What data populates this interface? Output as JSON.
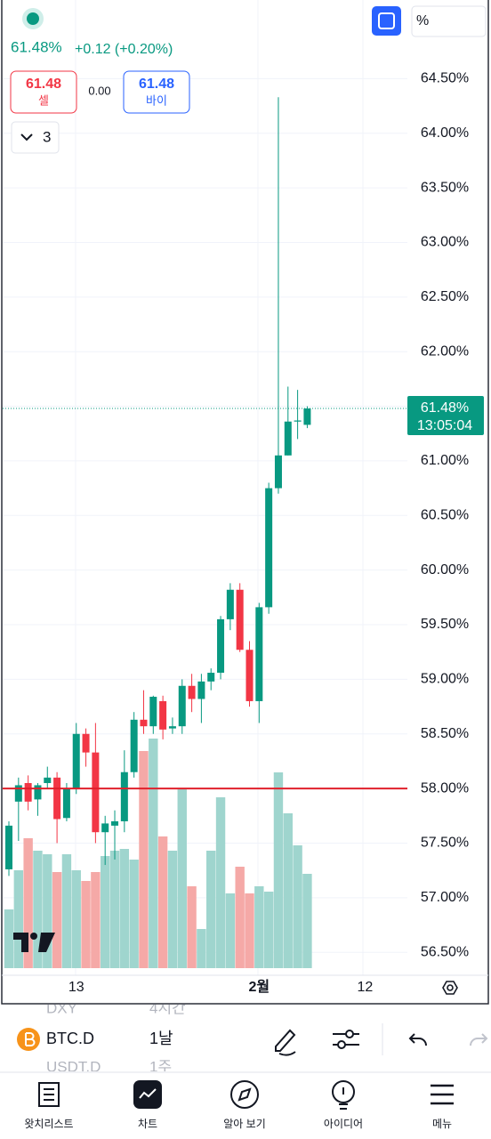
{
  "header": {
    "price": "61.48%",
    "change": "+0.12 (+0.20%)",
    "sell_price": "61.48",
    "sell_label": "셀",
    "spread": "0.00",
    "buy_price": "61.48",
    "buy_label": "바이",
    "indicators_count": "3",
    "scale_button": "%"
  },
  "chart_data": {
    "type": "candlestick",
    "categories": [
      null,
      null,
      null,
      null,
      null,
      null,
      null,
      "13",
      null,
      null,
      null,
      null,
      null,
      null,
      null,
      null,
      null,
      null,
      null,
      null,
      null,
      null,
      null,
      null,
      null,
      null,
      "2월",
      null,
      null,
      null,
      null,
      null,
      null,
      null,
      null,
      null,
      null,
      "12"
    ],
    "open": [
      57.26,
      57.88,
      58.05,
      57.9,
      58.05,
      58.1,
      57.73,
      58.0,
      58.5,
      58.33,
      57.6,
      57.66,
      57.7,
      58.15,
      58.63,
      58.57,
      58.8,
      58.55,
      58.57,
      58.94,
      58.82,
      58.98,
      59.06,
      59.55,
      59.82,
      59.27,
      58.8,
      59.66,
      60.75,
      61.05,
      61.36,
      61.33,
      null,
      null,
      null,
      null,
      null,
      null
    ],
    "high": [
      57.7,
      58.1,
      58.12,
      58.05,
      58.2,
      58.15,
      58.05,
      58.6,
      58.55,
      58.6,
      57.75,
      57.8,
      58.35,
      58.7,
      58.9,
      58.85,
      58.85,
      58.65,
      59.0,
      59.05,
      59.05,
      59.1,
      59.58,
      59.88,
      59.88,
      59.35,
      59.7,
      60.8,
      64.33,
      61.68,
      61.65,
      61.5,
      null,
      null,
      null,
      null,
      null,
      null
    ],
    "low": [
      57.2,
      57.52,
      57.8,
      57.75,
      58.0,
      57.5,
      57.7,
      57.95,
      58.2,
      57.5,
      57.3,
      57.35,
      57.6,
      58.1,
      58.5,
      58.5,
      58.45,
      58.5,
      58.5,
      58.7,
      58.6,
      58.9,
      59.0,
      59.45,
      59.25,
      58.75,
      58.6,
      59.6,
      60.7,
      61.05,
      61.2,
      61.3,
      null,
      null,
      null,
      null,
      null,
      null
    ],
    "close": [
      57.66,
      58.03,
      57.88,
      58.03,
      58.1,
      57.72,
      58.0,
      58.5,
      58.33,
      57.6,
      57.68,
      57.7,
      58.15,
      58.63,
      58.57,
      58.84,
      58.54,
      58.57,
      58.94,
      58.82,
      58.98,
      59.06,
      59.55,
      59.82,
      59.27,
      58.8,
      59.66,
      60.75,
      61.05,
      61.36,
      61.37,
      61.48,
      null,
      null,
      null,
      null,
      null,
      null
    ],
    "volume": [
      66,
      110,
      146,
      132,
      128,
      108,
      128,
      110,
      98,
      108,
      126,
      132,
      134,
      122,
      244,
      258,
      148,
      132,
      202,
      92,
      44,
      132,
      192,
      84,
      114,
      84,
      92,
      86,
      220,
      174,
      138,
      106,
      null,
      null,
      null,
      null,
      null,
      null
    ],
    "up_color": "#089981",
    "down_color": "#f23645",
    "volume_up_color": "#9fd5ce",
    "volume_down_color": "#f5a9a7",
    "ylim": [
      56.29,
      65.22
    ],
    "yticks": [
      {
        "value": 56.5,
        "label": "56.50%"
      },
      {
        "value": 57,
        "label": "57.00%"
      },
      {
        "value": 57.5,
        "label": "57.50%"
      },
      {
        "value": 58,
        "label": "58.00%"
      },
      {
        "value": 58.5,
        "label": "58.50%"
      },
      {
        "value": 59,
        "label": "59.00%"
      },
      {
        "value": 59.5,
        "label": "59.50%"
      },
      {
        "value": 60,
        "label": "60.00%"
      },
      {
        "value": 60.5,
        "label": "60.50%"
      },
      {
        "value": 61,
        "label": "61.00%"
      },
      {
        "value": 61.5,
        "label": "61.50%"
      },
      {
        "value": 62,
        "label": "62.00%"
      },
      {
        "value": 62.5,
        "label": "62.50%"
      },
      {
        "value": 63,
        "label": "63.00%"
      },
      {
        "value": 63.5,
        "label": "63.50%"
      },
      {
        "value": 64,
        "label": "64.00%"
      },
      {
        "value": 64.5,
        "label": "64.50%"
      }
    ],
    "grid": true,
    "price_line": {
      "value": 61.48,
      "label": "61.48%",
      "countdown": "13:05:04",
      "color": "#089981"
    },
    "alert_line": {
      "value": 58.0,
      "color": "#e0202b"
    }
  },
  "toolbar": {
    "symbol": "BTC.D",
    "interval": "1날",
    "prev_symbol": "DXY",
    "prev_interval": "4시간",
    "next_symbol": "USDT.D",
    "next_interval": "1주"
  },
  "nav": [
    "왓치리스트",
    "차트",
    "알아 보기",
    "아이디어",
    "메뉴"
  ]
}
